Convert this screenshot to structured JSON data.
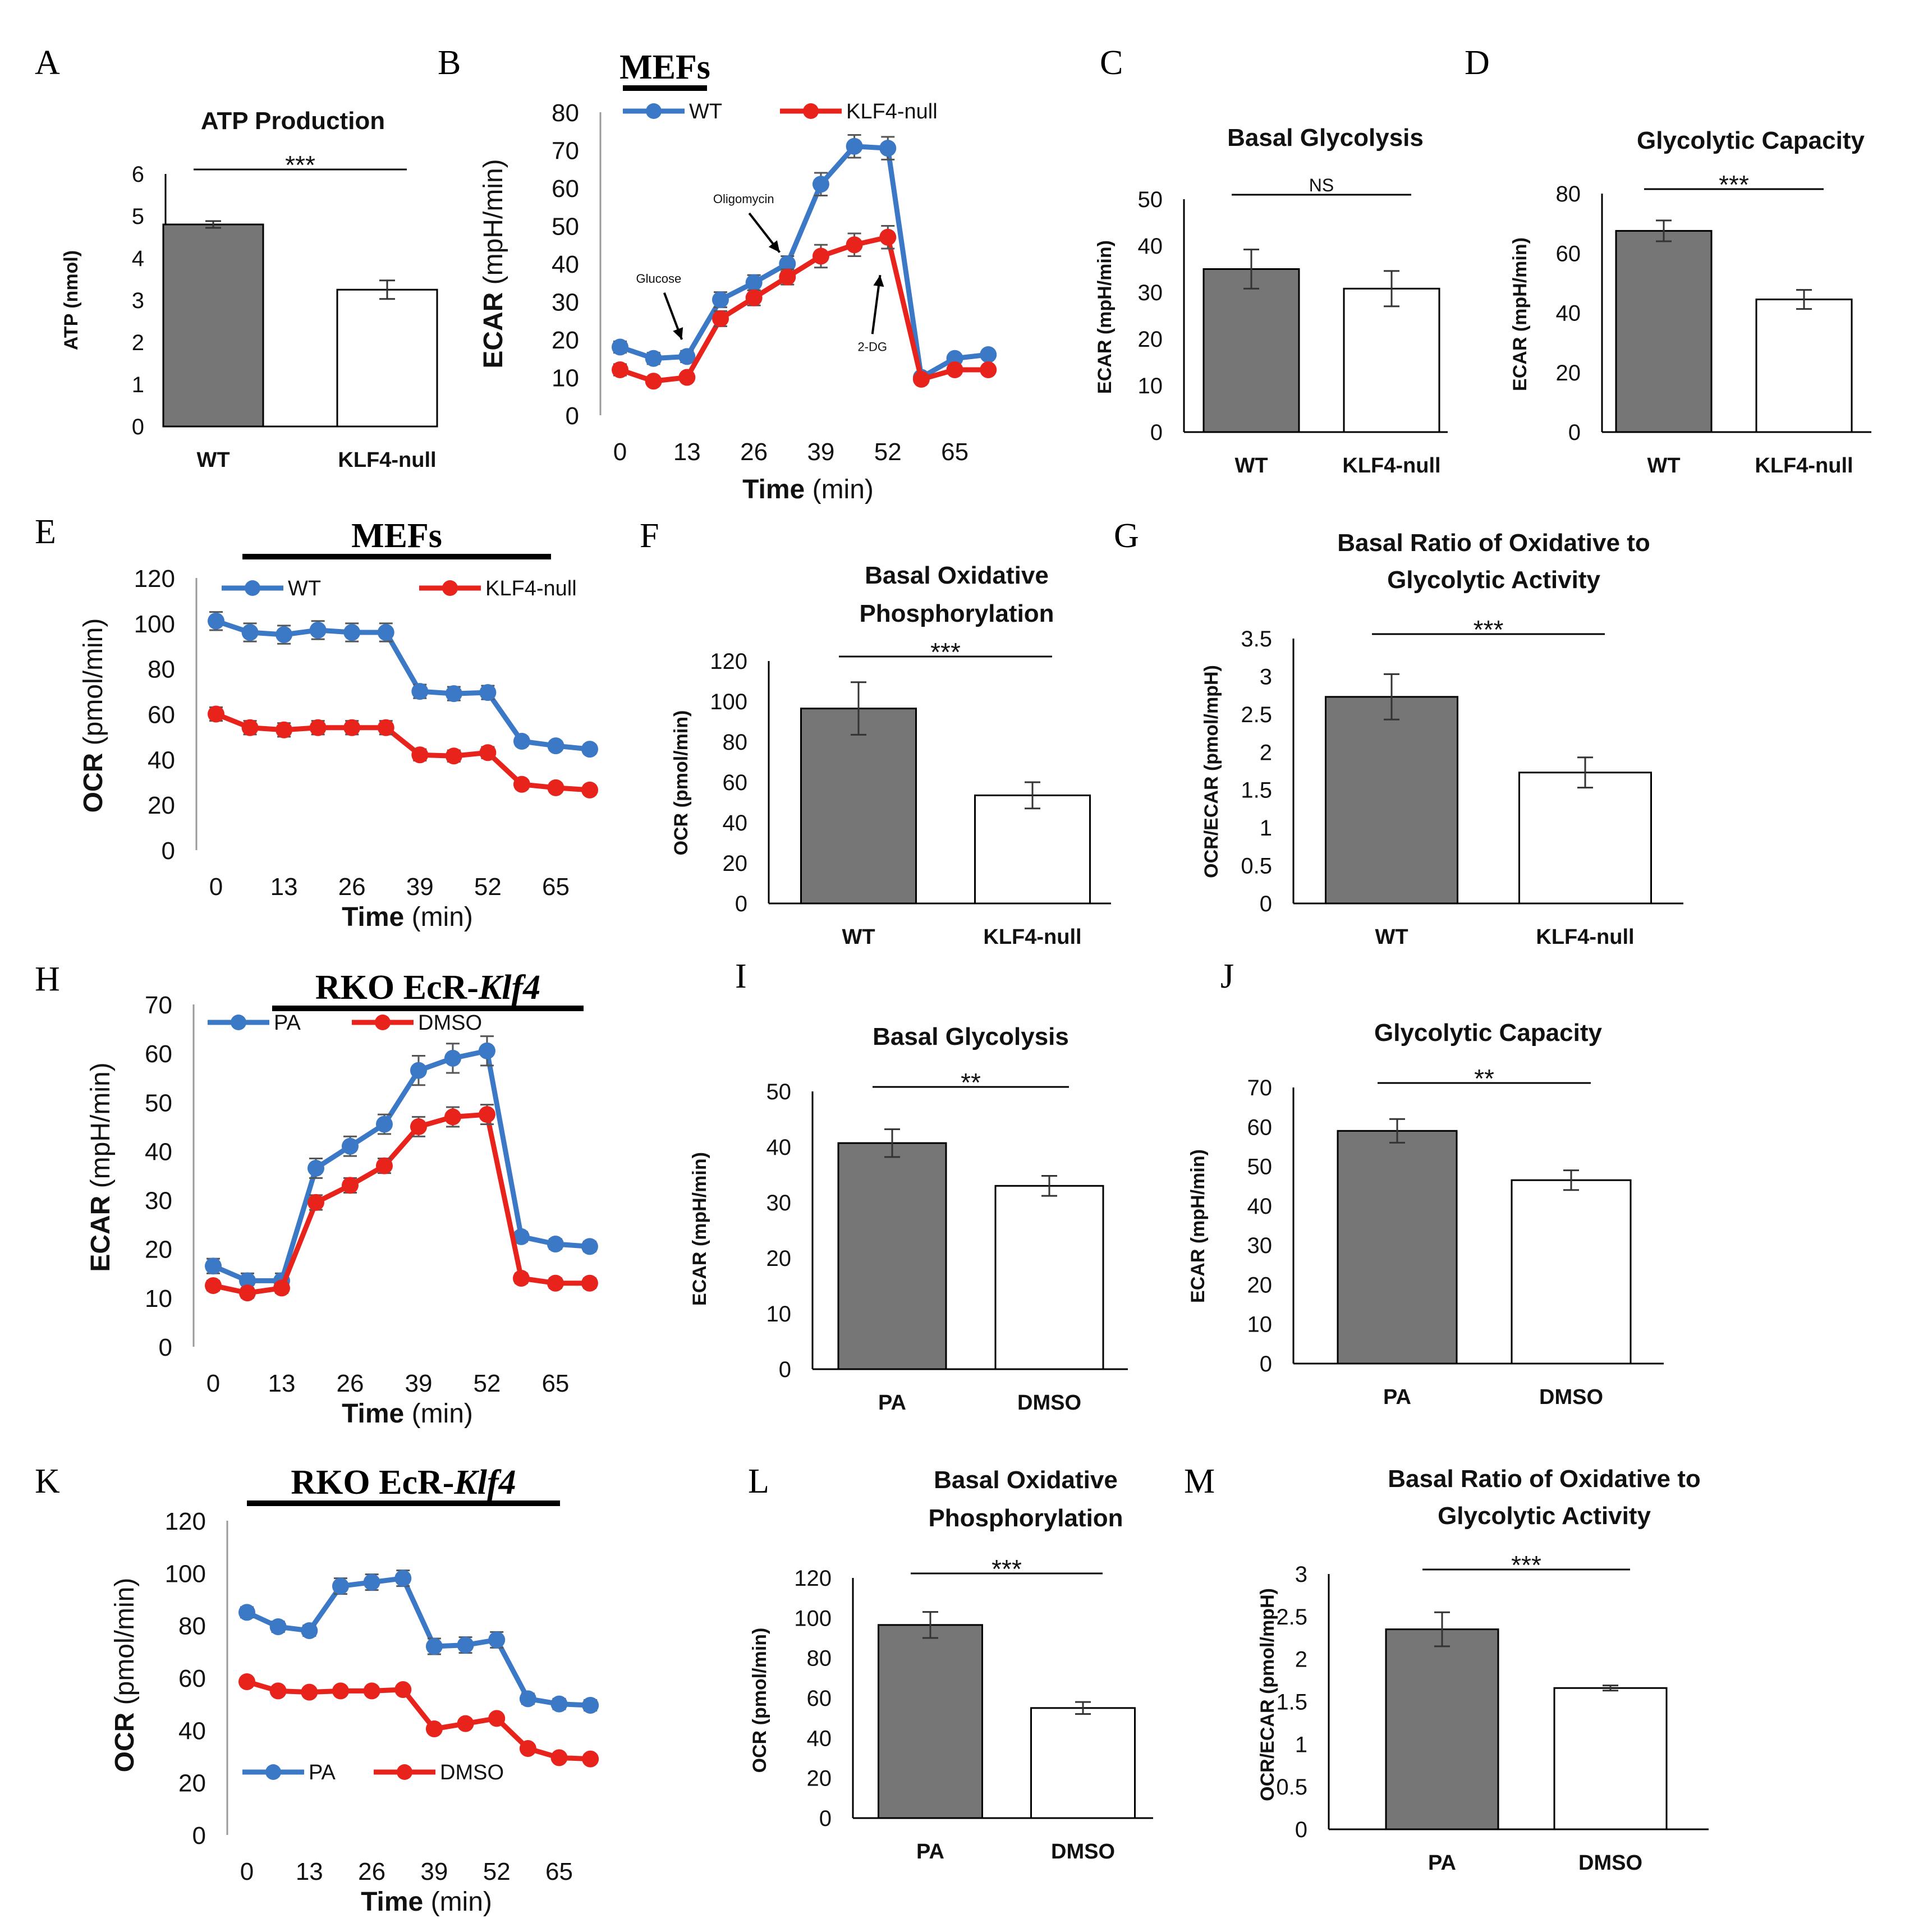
{
  "colors": {
    "blue": "#3b78c6",
    "red": "#e8231c",
    "gray": "#767676",
    "white": "#ffffff",
    "axis": "#000000"
  },
  "chart_data": [
    {
      "id": "A",
      "type": "bar",
      "letter": "A",
      "title": "ATP Production",
      "ylabel": "ATP (nmol)",
      "ylabel_bold": "ATP",
      "ylabel_rest": " (nmol)",
      "categories": [
        "WT",
        "KLF4-null"
      ],
      "values": [
        4.8,
        3.25
      ],
      "errors": [
        0.08,
        0.22
      ],
      "ylim": [
        0,
        6
      ],
      "yticks": [
        0,
        1,
        2,
        3,
        4,
        5,
        6
      ],
      "significance": "***"
    },
    {
      "id": "B",
      "type": "line",
      "letter": "B",
      "condition_title": "MEFs",
      "ylabel": "ECAR (mpH/min)",
      "ylabel_bold": "ECAR",
      "ylabel_rest": " (mpH/min)",
      "xlabel": "Time (min)",
      "xlabel_bold": "Time",
      "xlabel_rest": " (min)",
      "ylim": [
        0,
        80
      ],
      "yticks": [
        0,
        10,
        20,
        30,
        40,
        50,
        60,
        70,
        80
      ],
      "xticks": [
        0,
        13,
        26,
        39,
        52,
        65
      ],
      "xlim": [
        0,
        73
      ],
      "series": [
        {
          "name": "WT",
          "color": "blue",
          "x": [
            0,
            6.5,
            13,
            19.5,
            26,
            32.5,
            39,
            45.5,
            52,
            58.5,
            65,
            71.5
          ],
          "values": [
            18,
            15,
            15.5,
            30.5,
            35,
            40,
            61,
            71,
            70.5,
            10,
            15,
            16
          ],
          "errors": [
            1.5,
            1.5,
            1.5,
            2,
            2,
            2,
            3,
            3,
            3,
            1,
            1,
            1
          ]
        },
        {
          "name": "KLF4-null",
          "color": "red",
          "x": [
            0,
            6.5,
            13,
            19.5,
            26,
            32.5,
            39,
            45.5,
            52,
            58.5,
            65,
            71.5
          ],
          "values": [
            12,
            9,
            10,
            25.5,
            31,
            36.5,
            42,
            45,
            47,
            9.5,
            12,
            12
          ],
          "errors": [
            1.5,
            1,
            1,
            2,
            2,
            2,
            3,
            3,
            3,
            1,
            1,
            1
          ]
        }
      ],
      "annotations": [
        {
          "text": "Glucose",
          "x": 7.5,
          "y": 35,
          "ax": 12,
          "ay": 20
        },
        {
          "text": "Oligomycin",
          "x": 24,
          "y": 56,
          "ax": 31,
          "ay": 43
        },
        {
          "text": "2-DG",
          "x": 49,
          "y": 17,
          "ax": 50.5,
          "ay": 37
        }
      ]
    },
    {
      "id": "C",
      "type": "bar",
      "letter": "C",
      "title": "Basal Glycolysis",
      "ylabel": "ECAR (mpH/min)",
      "ylabel_bold": "ECAR",
      "ylabel_rest": " (mpH/min)",
      "categories": [
        "WT",
        "KLF4-null"
      ],
      "values": [
        35,
        30.8
      ],
      "errors": [
        4.2,
        3.8
      ],
      "ylim": [
        0,
        50
      ],
      "yticks": [
        0,
        10,
        20,
        30,
        40,
        50
      ],
      "significance": "NS"
    },
    {
      "id": "D",
      "type": "bar",
      "letter": "D",
      "title": "Glycolytic Capacity",
      "ylabel": "ECAR (mpH/min)",
      "ylabel_bold": "ECAR",
      "ylabel_rest": " (mpH/min)",
      "categories": [
        "WT",
        "KLF4-null"
      ],
      "values": [
        67.5,
        44.5
      ],
      "errors": [
        3.5,
        3.2
      ],
      "ylim": [
        0,
        80
      ],
      "yticks": [
        0,
        20,
        40,
        60,
        80
      ],
      "significance": "***"
    },
    {
      "id": "E",
      "type": "line",
      "letter": "E",
      "condition_title": "MEFs",
      "ylabel": "OCR (pmol/min)",
      "ylabel_bold": "OCR",
      "ylabel_rest": " (pmol/min)",
      "xlabel": "Time (min)",
      "xlabel_bold": "Time",
      "xlabel_rest": " (min)",
      "ylim": [
        0,
        120
      ],
      "yticks": [
        0,
        20,
        40,
        60,
        80,
        100,
        120
      ],
      "xticks": [
        0,
        13,
        26,
        39,
        52,
        65
      ],
      "xlim": [
        0,
        73
      ],
      "series": [
        {
          "name": "WT",
          "color": "blue",
          "x": [
            0,
            6.5,
            13,
            19.5,
            26,
            32.5,
            39,
            45.5,
            52,
            58.5,
            65,
            71.5
          ],
          "values": [
            101,
            96,
            95,
            97,
            96,
            96,
            70,
            69,
            69.5,
            48,
            46,
            44.5
          ],
          "errors": [
            4,
            4,
            4,
            4,
            4,
            4,
            3,
            3,
            3,
            2,
            2,
            2
          ]
        },
        {
          "name": "KLF4-null",
          "color": "red",
          "x": [
            0,
            6.5,
            13,
            19.5,
            26,
            32.5,
            39,
            45.5,
            52,
            58.5,
            65,
            71.5
          ],
          "values": [
            60,
            54,
            53,
            54,
            54,
            54,
            42,
            41.5,
            43,
            29,
            27.5,
            26.5
          ],
          "errors": [
            3,
            3,
            3,
            3,
            3,
            3,
            2.5,
            2.5,
            2.5,
            2,
            2,
            2
          ]
        }
      ]
    },
    {
      "id": "F",
      "type": "bar",
      "letter": "F",
      "title": "Basal Oxidative Phosphorylation",
      "title_lines": [
        "Basal Oxidative",
        "Phosphorylation"
      ],
      "ylabel": "OCR (pmol/min)",
      "ylabel_bold": "OCR",
      "ylabel_rest": " (pmol/min)",
      "categories": [
        "WT",
        "KLF4-null"
      ],
      "values": [
        96.5,
        53.5
      ],
      "errors": [
        13,
        6.5
      ],
      "ylim": [
        0,
        120
      ],
      "yticks": [
        0,
        20,
        40,
        60,
        80,
        100,
        120
      ],
      "significance": "***"
    },
    {
      "id": "G",
      "type": "bar",
      "letter": "G",
      "title": "Basal Ratio of Oxidative to Glycolytic Activity",
      "title_lines": [
        "Basal Ratio of Oxidative to",
        "Glycolytic Activity"
      ],
      "ylabel": "OCR/ECAR (pmol/mpH)",
      "ylabel_bold": "OCR/ECAR",
      "ylabel_rest": " (pmol/mpH)",
      "categories": [
        "WT",
        "KLF4-null"
      ],
      "values": [
        2.73,
        1.73
      ],
      "errors": [
        0.3,
        0.2
      ],
      "ylim": [
        0,
        3.5
      ],
      "yticks": [
        0,
        0.5,
        1,
        1.5,
        2,
        2.5,
        3,
        3.5
      ],
      "significance": "***"
    },
    {
      "id": "H",
      "type": "line",
      "letter": "H",
      "condition_title": "RKO EcR-Klf4",
      "condition_title_main": "RKO EcR-",
      "condition_title_italic": "Klf4",
      "ylabel": "ECAR (mpH/min)",
      "ylabel_bold": "ECAR",
      "ylabel_rest": " (mpH/min)",
      "xlabel": "Time (min)",
      "xlabel_bold": "Time",
      "xlabel_rest": " (min)",
      "ylim": [
        0,
        70
      ],
      "yticks": [
        0,
        10,
        20,
        30,
        40,
        50,
        60,
        70
      ],
      "xticks": [
        0,
        13,
        26,
        39,
        52,
        65
      ],
      "xlim": [
        0,
        73
      ],
      "series": [
        {
          "name": "PA",
          "color": "blue",
          "x": [
            0,
            6.5,
            13,
            19.5,
            26,
            32.5,
            39,
            45.5,
            52,
            58.5,
            65,
            71.5
          ],
          "values": [
            16.5,
            13.5,
            13.5,
            36.5,
            41,
            45.5,
            56.5,
            59,
            60.5,
            22.5,
            21,
            20.5
          ],
          "errors": [
            1.5,
            1.5,
            1.5,
            2,
            2,
            2,
            3,
            3,
            3,
            1,
            1,
            1
          ]
        },
        {
          "name": "DMSO",
          "color": "red",
          "x": [
            0,
            6.5,
            13,
            19.5,
            26,
            32.5,
            39,
            45.5,
            52,
            58.5,
            65,
            71.5
          ],
          "values": [
            12.5,
            11,
            12,
            29.5,
            33,
            37,
            45,
            47,
            47.5,
            14,
            13,
            13
          ],
          "errors": [
            1,
            1,
            1,
            1.5,
            1.5,
            1.5,
            2,
            2,
            2,
            1,
            1,
            1
          ]
        }
      ]
    },
    {
      "id": "I",
      "type": "bar",
      "letter": "I",
      "title": "Basal Glycolysis",
      "ylabel": "ECAR (mpH/min)",
      "ylabel_bold": "ECAR",
      "ylabel_rest": " (mpH/min)",
      "categories": [
        "PA",
        "DMSO"
      ],
      "values": [
        40.7,
        33
      ],
      "errors": [
        2.5,
        1.8
      ],
      "ylim": [
        0,
        50
      ],
      "yticks": [
        0,
        10,
        20,
        30,
        40,
        50
      ],
      "significance": "**"
    },
    {
      "id": "J",
      "type": "bar",
      "letter": "J",
      "title": "Glycolytic Capacity",
      "ylabel": "ECAR (mpH/min)",
      "ylabel_bold": "ECAR",
      "ylabel_rest": " (mpH/min)",
      "categories": [
        "PA",
        "DMSO"
      ],
      "values": [
        59,
        46.5
      ],
      "errors": [
        3,
        2.5
      ],
      "ylim": [
        0,
        70
      ],
      "yticks": [
        0,
        10,
        20,
        30,
        40,
        50,
        60,
        70
      ],
      "significance": "**"
    },
    {
      "id": "K",
      "type": "line",
      "letter": "K",
      "condition_title": "RKO EcR-Klf4",
      "condition_title_main": "RKO EcR-",
      "condition_title_italic": "Klf4",
      "ylabel": "OCR (pmol/min)",
      "ylabel_bold": "OCR",
      "ylabel_rest": " (pmol/min)",
      "xlabel": "Time (min)",
      "xlabel_bold": "Time",
      "xlabel_rest": " (min)",
      "ylim": [
        0,
        120
      ],
      "yticks": [
        0,
        20,
        40,
        60,
        80,
        100,
        120
      ],
      "xticks": [
        0,
        13,
        26,
        39,
        52,
        65
      ],
      "xlim": [
        0,
        73
      ],
      "series": [
        {
          "name": "PA",
          "color": "blue",
          "x": [
            0,
            6.5,
            13,
            19.5,
            26,
            32.5,
            39,
            45.5,
            52,
            58.5,
            65,
            71.5
          ],
          "values": [
            85,
            79.5,
            78,
            95,
            96.5,
            98,
            72,
            72.5,
            74.5,
            52,
            50,
            49.5
          ],
          "errors": [
            2,
            2,
            2,
            3,
            3,
            3,
            3,
            3,
            3,
            2,
            2,
            2
          ]
        },
        {
          "name": "DMSO",
          "color": "red",
          "x": [
            0,
            6.5,
            13,
            19.5,
            26,
            32.5,
            39,
            45.5,
            52,
            58.5,
            65,
            71.5
          ],
          "values": [
            58.5,
            55,
            54.5,
            55,
            55,
            55.5,
            40.5,
            42.5,
            44.5,
            33,
            29.5,
            29
          ],
          "errors": [
            1.5,
            1.5,
            1.5,
            1.5,
            1.5,
            1.5,
            1.5,
            1.5,
            1.5,
            1.5,
            1.5,
            1.5
          ]
        }
      ]
    },
    {
      "id": "L",
      "type": "bar",
      "letter": "L",
      "title": "Basal Oxidative Phosphorylation",
      "title_lines": [
        "Basal Oxidative",
        "Phosphorylation"
      ],
      "ylabel": "OCR (pmol/min)",
      "ylabel_bold": "OCR",
      "ylabel_rest": " (pmol/min)",
      "categories": [
        "PA",
        "DMSO"
      ],
      "values": [
        96.5,
        55
      ],
      "errors": [
        6.5,
        3
      ],
      "ylim": [
        0,
        120
      ],
      "yticks": [
        0,
        20,
        40,
        60,
        80,
        100,
        120
      ],
      "significance": "***"
    },
    {
      "id": "M",
      "type": "bar",
      "letter": "M",
      "title": "Basal Ratio of Oxidative to Glycolytic Activity",
      "title_lines": [
        "Basal Ratio of Oxidative to",
        "Glycolytic Activity"
      ],
      "ylabel": "OCR/ECAR (pmol/mpH)",
      "ylabel_bold": "OCR/ECAR",
      "ylabel_rest": " (pmol/mpH)",
      "categories": [
        "PA",
        "DMSO"
      ],
      "values": [
        2.35,
        1.66
      ],
      "errors": [
        0.2,
        0.03
      ],
      "ylim": [
        0,
        3
      ],
      "yticks": [
        0,
        0.5,
        1,
        1.5,
        2,
        2.5,
        3
      ],
      "significance": "***"
    }
  ]
}
